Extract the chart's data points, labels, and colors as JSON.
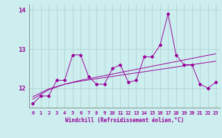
{
  "xlabel": "Windchill (Refroidissement éolien,°C)",
  "x_values": [
    0,
    1,
    2,
    3,
    4,
    5,
    6,
    7,
    8,
    9,
    10,
    11,
    12,
    13,
    14,
    15,
    16,
    17,
    18,
    19,
    20,
    21,
    22,
    23
  ],
  "y_main": [
    11.6,
    11.8,
    11.8,
    12.2,
    12.2,
    12.85,
    12.85,
    12.3,
    12.1,
    12.1,
    12.5,
    12.6,
    12.15,
    12.2,
    12.8,
    12.8,
    13.1,
    13.9,
    12.85,
    12.6,
    12.6,
    12.1,
    12.0,
    12.15
  ],
  "y_reg1": [
    11.78,
    11.88,
    11.98,
    12.04,
    12.1,
    12.14,
    12.18,
    12.21,
    12.24,
    12.27,
    12.3,
    12.33,
    12.36,
    12.39,
    12.42,
    12.45,
    12.48,
    12.51,
    12.54,
    12.57,
    12.6,
    12.63,
    12.66,
    12.69
  ],
  "y_reg2": [
    11.72,
    11.84,
    11.96,
    12.03,
    12.1,
    12.15,
    12.2,
    12.24,
    12.28,
    12.32,
    12.36,
    12.4,
    12.44,
    12.48,
    12.52,
    12.56,
    12.6,
    12.64,
    12.68,
    12.72,
    12.76,
    12.8,
    12.84,
    12.88
  ],
  "line_color": "#990099",
  "bg_color": "#cceeee",
  "grid_color": "#aacccc",
  "ylim": [
    11.5,
    14.15
  ],
  "yticks": [
    12,
    13,
    14
  ],
  "marker": "D",
  "marker_size": 2.0,
  "tick_labelsize": 5.0,
  "xlabel_fontsize": 5.5
}
